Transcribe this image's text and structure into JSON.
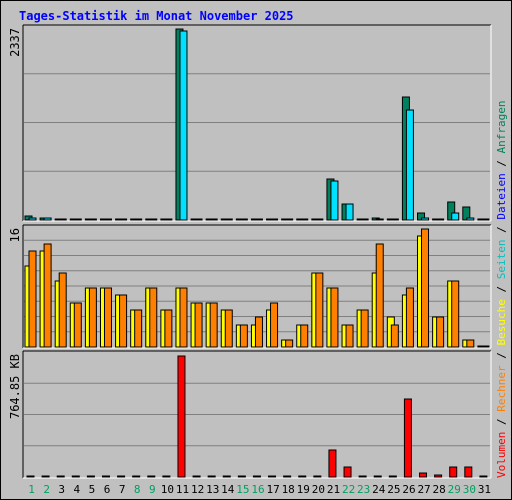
{
  "title": "Tages-Statistik im Monat November 2025",
  "colors": {
    "background": "#c0c0c0",
    "plot_bg": "#c0c0c0",
    "title": "#0000ff",
    "grid": "#808080",
    "anfragen": "#00805c",
    "dateien": "#00e0ff",
    "seiten": "#00c0c0",
    "besuche": "#ffff00",
    "rechner": "#ff8000",
    "volumen": "#ff0000",
    "weekend": "#00a060"
  },
  "legend_right": [
    {
      "text": "Volumen",
      "color": "#ff0000"
    },
    {
      "text": " / ",
      "color": "#000000"
    },
    {
      "text": "Rechner",
      "color": "#ff8000"
    },
    {
      "text": " / ",
      "color": "#000000"
    },
    {
      "text": "Besuche",
      "color": "#ffff00"
    },
    {
      "text": " / ",
      "color": "#000000"
    },
    {
      "text": "Seiten",
      "color": "#00c0c0"
    },
    {
      "text": " / ",
      "color": "#000000"
    },
    {
      "text": "Dateien",
      "color": "#0000ff"
    },
    {
      "text": " / ",
      "color": "#000000"
    },
    {
      "text": "Anfragen",
      "color": "#00805c"
    }
  ],
  "weekend_days": [
    1,
    2,
    8,
    9,
    15,
    16,
    22,
    23,
    29,
    30
  ],
  "chart_data": [
    {
      "type": "bar",
      "panel": "top",
      "max_label": "2337",
      "ylim": [
        0,
        2337
      ],
      "grid": true,
      "categories": [
        "1",
        "2",
        "3",
        "4",
        "5",
        "6",
        "7",
        "8",
        "9",
        "10",
        "11",
        "12",
        "13",
        "14",
        "15",
        "16",
        "17",
        "18",
        "19",
        "20",
        "21",
        "22",
        "23",
        "24",
        "25",
        "26",
        "27",
        "28",
        "29",
        "30",
        "31"
      ],
      "series": [
        {
          "name": "Anfragen",
          "color": "#00805c",
          "values": [
            55,
            30,
            8,
            8,
            8,
            8,
            8,
            8,
            8,
            8,
            2337,
            8,
            8,
            8,
            8,
            8,
            8,
            8,
            8,
            8,
            500,
            200,
            8,
            20,
            8,
            1500,
            85,
            15,
            220,
            160,
            8
          ]
        },
        {
          "name": "Dateien",
          "color": "#00e0ff",
          "values": [
            30,
            25,
            5,
            5,
            5,
            5,
            5,
            5,
            5,
            5,
            2310,
            5,
            5,
            5,
            5,
            5,
            5,
            5,
            5,
            5,
            480,
            190,
            5,
            10,
            5,
            1340,
            20,
            10,
            90,
            20,
            5
          ]
        }
      ]
    },
    {
      "type": "bar",
      "panel": "middle",
      "max_label": "16",
      "ylim": [
        0,
        16
      ],
      "grid": true,
      "categories": [
        "1",
        "2",
        "3",
        "4",
        "5",
        "6",
        "7",
        "8",
        "9",
        "10",
        "11",
        "12",
        "13",
        "14",
        "15",
        "16",
        "17",
        "18",
        "19",
        "20",
        "21",
        "22",
        "23",
        "24",
        "25",
        "26",
        "27",
        "28",
        "29",
        "30",
        "31"
      ],
      "series": [
        {
          "name": "Besuche",
          "color": "#ffff00",
          "values": [
            11,
            13,
            9,
            6,
            8,
            8,
            7,
            5,
            8,
            5,
            8,
            6,
            6,
            5,
            3,
            3,
            5,
            1,
            3,
            10,
            8,
            3,
            5,
            10,
            4,
            7,
            15,
            4,
            9,
            1,
            0
          ]
        },
        {
          "name": "Rechner",
          "color": "#ff8000",
          "values": [
            13,
            14,
            10,
            6,
            8,
            8,
            7,
            5,
            8,
            5,
            8,
            6,
            6,
            5,
            3,
            4,
            6,
            1,
            3,
            10,
            8,
            3,
            5,
            14,
            3,
            8,
            16,
            4,
            9,
            1,
            0
          ]
        }
      ]
    },
    {
      "type": "bar",
      "panel": "bottom",
      "max_label": "764.85 KB",
      "ylim": [
        0,
        764.85
      ],
      "grid": true,
      "categories": [
        "1",
        "2",
        "3",
        "4",
        "5",
        "6",
        "7",
        "8",
        "9",
        "10",
        "11",
        "12",
        "13",
        "14",
        "15",
        "16",
        "17",
        "18",
        "19",
        "20",
        "21",
        "22",
        "23",
        "24",
        "25",
        "26",
        "27",
        "28",
        "29",
        "30",
        "31"
      ],
      "series": [
        {
          "name": "Volumen",
          "color": "#ff0000",
          "values": [
            4,
            4,
            4,
            4,
            4,
            4,
            4,
            4,
            4,
            4,
            764.85,
            4,
            4,
            4,
            4,
            4,
            4,
            4,
            4,
            4,
            170,
            65,
            4,
            8,
            4,
            490,
            25,
            10,
            65,
            65,
            4
          ]
        }
      ]
    }
  ]
}
